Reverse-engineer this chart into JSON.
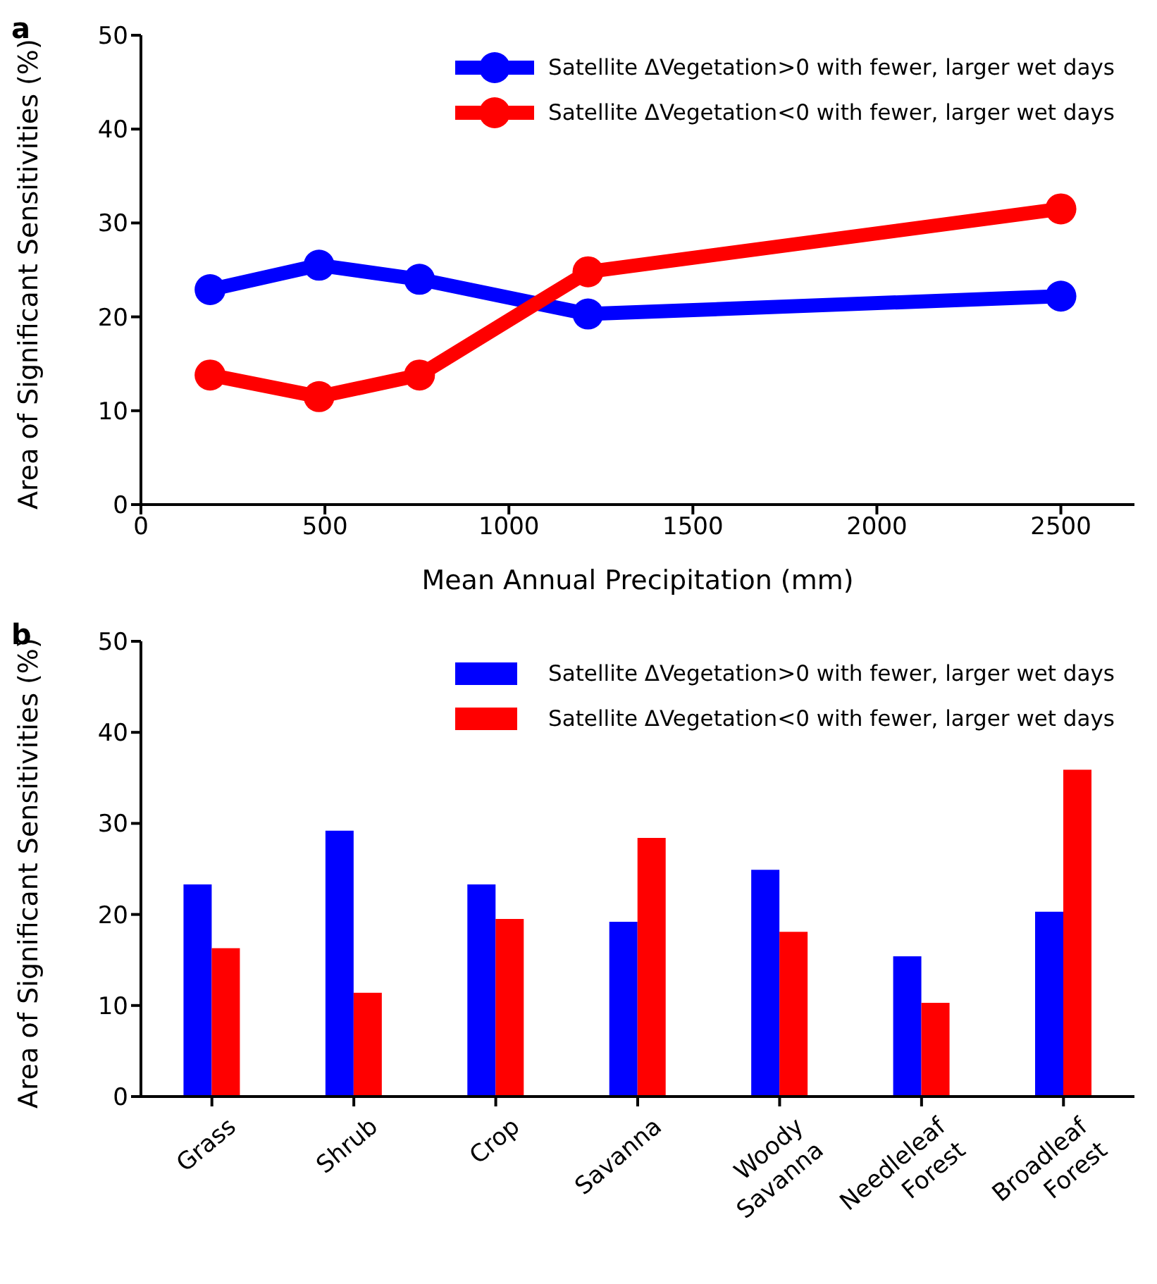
{
  "chart_data": [
    {
      "type": "line",
      "title": "a",
      "xlabel": "Mean Annual Precipitation (mm)",
      "ylabel": "Area of Significant Sensitivities (%)",
      "x": [
        188,
        484,
        757,
        1215,
        2500
      ],
      "series": [
        {
          "name": "Satellite ΔVegetation>0 with fewer, larger wet days",
          "color": "#0000ff",
          "values": [
            22.9,
            25.5,
            24,
            20.3,
            22.2
          ]
        },
        {
          "name": "Satellite ΔVegetation<0 with fewer, larger wet days",
          "color": "#ff0000",
          "values": [
            13.8,
            11.5,
            13.8,
            24.8,
            31.5
          ]
        }
      ],
      "xlim": [
        0,
        2700
      ],
      "xticks": [
        0,
        500,
        1000,
        1500,
        2000,
        2500
      ],
      "ylim": [
        0,
        50
      ],
      "yticks": [
        0,
        10,
        20,
        30,
        40,
        50
      ],
      "grid": false,
      "legend": "top right",
      "marker": "circle",
      "line_style": "solid"
    },
    {
      "type": "bar",
      "title": "b",
      "ylabel": "Area of Significant Sensitivities (%)",
      "categories": [
        "Grass",
        "Shrub",
        "Crop",
        "Savanna",
        "Woody\nSavanna",
        "Needleleaf\nForest",
        "Broadleaf\nForest"
      ],
      "series": [
        {
          "name": "Satellite ΔVegetation>0 with fewer, larger wet days",
          "color": "#0000ff",
          "values": [
            23.3,
            29.2,
            23.3,
            19.2,
            24.9,
            15.4,
            20.3
          ]
        },
        {
          "name": "Satellite ΔVegetation<0 with fewer, larger wet days",
          "color": "#ff0000",
          "values": [
            16.3,
            11.4,
            19.5,
            28.4,
            18.1,
            10.3,
            35.9
          ]
        }
      ],
      "ylim": [
        0,
        50
      ],
      "yticks": [
        0,
        10,
        20,
        30,
        40,
        50
      ],
      "grid": false,
      "legend": "top right"
    }
  ]
}
